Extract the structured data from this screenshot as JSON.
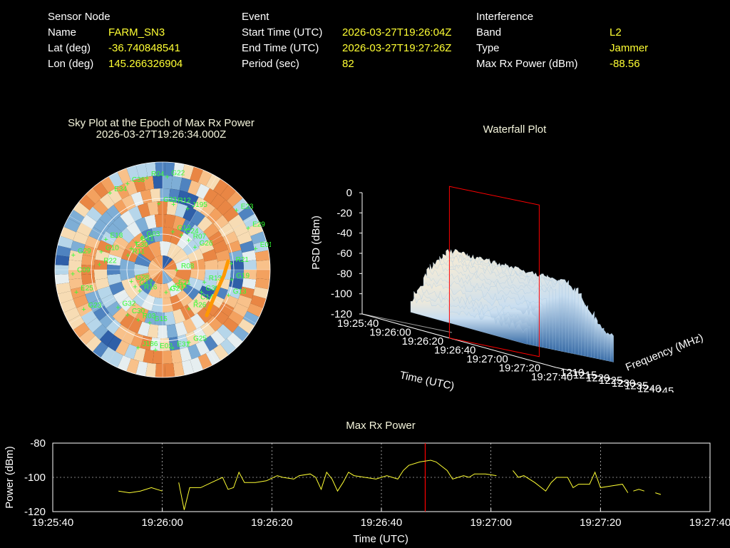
{
  "sensor_node": {
    "header": "Sensor Node",
    "rows": [
      {
        "label": "Name",
        "value": "FARM_SN3"
      },
      {
        "label": "Lat (deg)",
        "value": "-36.740848541"
      },
      {
        "label": "Lon (deg)",
        "value": "145.266326904"
      }
    ]
  },
  "event": {
    "header": "Event",
    "rows": [
      {
        "label": "Start Time (UTC)",
        "value": "2026-03-27T19:26:04Z"
      },
      {
        "label": "End Time (UTC)",
        "value": "2026-03-27T19:27:26Z"
      },
      {
        "label": "Period (sec)",
        "value": "82"
      }
    ]
  },
  "interference": {
    "header": "Interference",
    "rows": [
      {
        "label": "Band",
        "value": "L2"
      },
      {
        "label": "Type",
        "value": "Jammer"
      },
      {
        "label": "Max Rx Power (dBm)",
        "value": "-88.56"
      }
    ]
  },
  "sky_plot": {
    "title": "Sky Plot at the Epoch of Max Rx Power",
    "subtitle": "2026-03-27T19:26:34.000Z",
    "satellites": [
      "R08",
      "G32",
      "G22",
      "R26",
      "G29",
      "G26",
      "J186",
      "G03",
      "G13",
      "G28",
      "J195",
      "G27",
      "E18",
      "E01",
      "C30",
      "R04",
      "C14",
      "C09",
      "R07",
      "E02",
      "G41",
      "G19",
      "G17",
      "R12",
      "G11",
      "G10",
      "E29",
      "R03",
      "C38",
      "G36",
      "E25",
      "C24",
      "E31",
      "E30",
      "R21",
      "R16",
      "G33",
      "E21",
      "R22",
      "E23",
      "G15",
      "E34",
      "R13",
      "G23",
      "G12",
      "G25",
      "R11"
    ]
  },
  "waterfall": {
    "title": "Waterfall Plot",
    "zlabel": "PSD (dBm)",
    "xlabel": "Time (UTC)",
    "ylabel": "Frequency (MHz)",
    "z_ticks": [
      "0",
      "-20",
      "-40",
      "-60",
      "-80",
      "-100",
      "-120"
    ],
    "time_ticks": [
      "19:25:40",
      "19:26:00",
      "19:26:20",
      "19:26:40",
      "19:27:00",
      "19:27:20",
      "19:27:40"
    ],
    "freq_ticks": [
      "1210",
      "1215",
      "1220",
      "1225",
      "1230",
      "1235",
      "1240",
      "1245"
    ]
  },
  "chart_data": {
    "type": "line",
    "title": "Max Rx Power",
    "xlabel": "Time (UTC)",
    "ylabel": "Power (dBm)",
    "x_ticks": [
      "19:25:40",
      "19:26:00",
      "19:26:20",
      "19:26:40",
      "19:27:00",
      "19:27:20",
      "19:27:40"
    ],
    "y_ticks": [
      "-80",
      "-100",
      "-120"
    ],
    "ylim": [
      -120,
      -80
    ],
    "grid": true,
    "marker_time_sec": 34,
    "series": [
      {
        "color": "#ffff33",
        "segments": [
          [
            [
              -48,
              -108
            ],
            [
              -46,
              -109
            ],
            [
              -44,
              -108
            ],
            [
              -42,
              -106
            ],
            [
              -40,
              -108
            ]
          ],
          [
            [
              -37,
              -103
            ],
            [
              -36,
              -119
            ],
            [
              -35,
              -106
            ],
            [
              -33,
              -106
            ],
            [
              -31,
              -103
            ],
            [
              -29,
              -100
            ],
            [
              -28,
              -107
            ],
            [
              -27,
              -106
            ],
            [
              -26,
              -97
            ],
            [
              -25,
              -103
            ],
            [
              -23,
              -103
            ],
            [
              -21,
              -102
            ],
            [
              -19,
              -99
            ],
            [
              -18,
              -100
            ],
            [
              -16,
              -101
            ],
            [
              -15,
              -99
            ],
            [
              -13,
              -98
            ],
            [
              -12,
              -100
            ],
            [
              -11,
              -107
            ],
            [
              -10,
              -97
            ],
            [
              -9,
              -101
            ],
            [
              -8,
              -108
            ],
            [
              -7,
              -103
            ],
            [
              -6,
              -97
            ],
            [
              -5,
              -99
            ],
            [
              -3,
              -100
            ],
            [
              -1,
              -101
            ],
            [
              0,
              -100
            ],
            [
              1,
              -99
            ],
            [
              3,
              -101
            ],
            [
              4,
              -96
            ],
            [
              5,
              -93
            ],
            [
              7,
              -91
            ],
            [
              9,
              -90
            ],
            [
              10,
              -91
            ],
            [
              12,
              -96
            ],
            [
              13,
              -101
            ],
            [
              14,
              -100
            ],
            [
              15,
              -99
            ],
            [
              16,
              -100
            ],
            [
              17,
              -98
            ],
            [
              19,
              -98
            ],
            [
              21,
              -99
            ]
          ],
          [
            [
              24,
              -96
            ],
            [
              25,
              -100
            ],
            [
              26,
              -99
            ],
            [
              28,
              -103
            ],
            [
              30,
              -108
            ],
            [
              31,
              -103
            ],
            [
              32,
              -100
            ],
            [
              34,
              -100
            ],
            [
              35,
              -106
            ],
            [
              36,
              -104
            ],
            [
              38,
              -104
            ],
            [
              39,
              -97
            ],
            [
              40,
              -106
            ],
            [
              42,
              -105
            ],
            [
              44,
              -104
            ],
            [
              45,
              -109
            ]
          ],
          [
            [
              46,
              -108
            ],
            [
              47,
              -107
            ],
            [
              48,
              -108
            ]
          ],
          [
            [
              50,
              -109
            ],
            [
              51,
              -110
            ]
          ]
        ]
      }
    ]
  },
  "colors": {
    "accent_value": "#ffff33",
    "marker": "#ff0000",
    "sat_label": "#33ff33",
    "trajectory": "#ff9900"
  }
}
